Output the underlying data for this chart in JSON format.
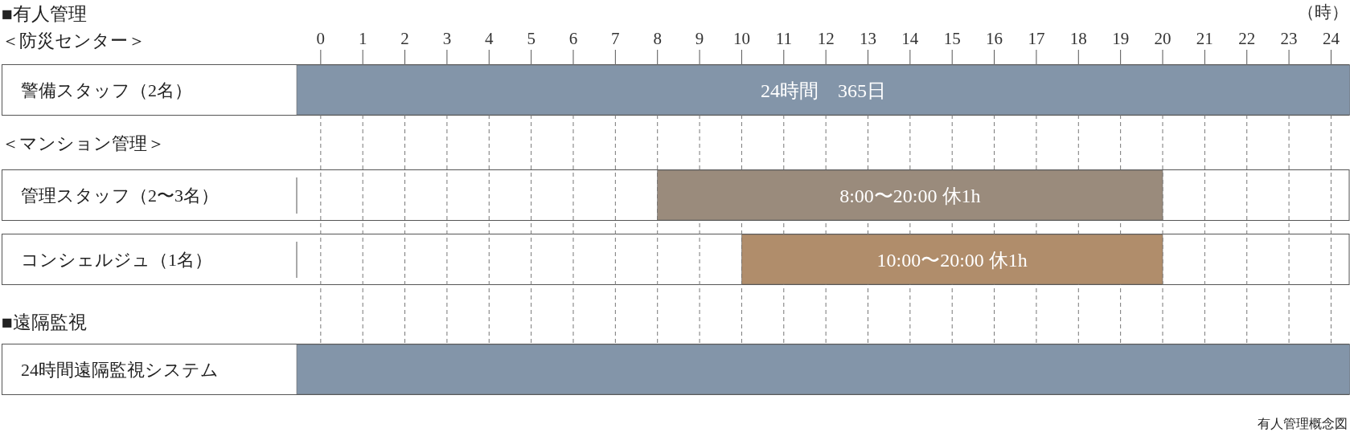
{
  "chart_data": {
    "type": "bar",
    "orientation": "horizontal",
    "xlabel": "（時）",
    "categories": [
      "警備スタッフ（2名）",
      "管理スタッフ（2〜3名）",
      "コンシェルジュ（1名）",
      "24時間遠隔監視システム"
    ],
    "base": [
      -0.57,
      8,
      10,
      -0.57
    ],
    "values": [
      25.02,
      12,
      10,
      25.02
    ],
    "colors": [
      "#8395a9",
      "#9a8b7c",
      "#b08d6b",
      "#8395a9"
    ],
    "xlim": [
      -0.57,
      24.45
    ],
    "xticks": [
      0,
      1,
      2,
      3,
      4,
      5,
      6,
      7,
      8,
      9,
      10,
      11,
      12,
      13,
      14,
      15,
      16,
      17,
      18,
      19,
      20,
      21,
      22,
      23,
      24
    ],
    "grid": "x",
    "annotations": [
      "■有人管理",
      "＜防災センター＞",
      "＜マンション管理＞",
      "■遠隔監視",
      "有人管理概念図",
      "24時間　365日",
      "8:00〜20:00 休1h",
      "10:00〜20:00 休1h"
    ]
  }
}
